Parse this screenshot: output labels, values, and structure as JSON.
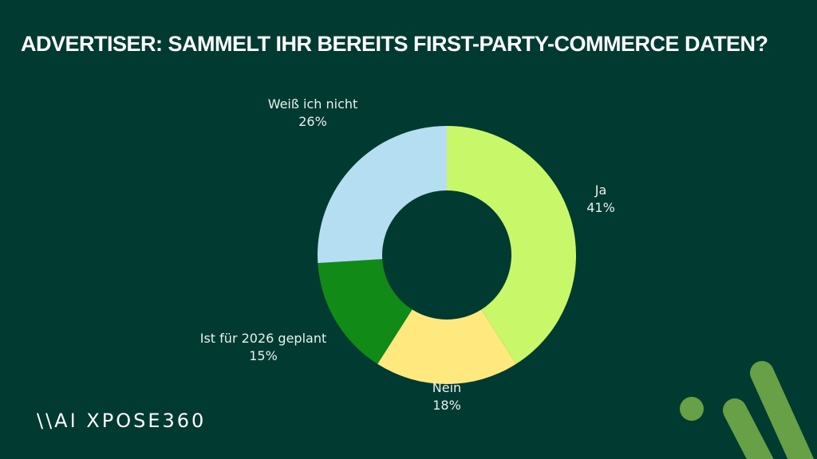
{
  "chart_data": {
    "type": "pie",
    "donut": true,
    "title": "ADVERTISER: SAMMELT IHR BEREITS FIRST-PARTY-COMMERCE DATEN?",
    "slices": [
      {
        "label": "Ja",
        "value": 41,
        "value_label": "41%",
        "color": "#c8f76a"
      },
      {
        "label": "Nein",
        "value": 18,
        "value_label": "18%",
        "color": "#ffe97f"
      },
      {
        "label": "Ist für 2026 geplant",
        "value": 15,
        "value_label": "15%",
        "color": "#118a18"
      },
      {
        "label": "Weiß ich nicht",
        "value": 26,
        "value_label": "26%",
        "color": "#b6def2"
      }
    ],
    "start": "top",
    "direction": "clockwise"
  },
  "branding": {
    "logo_text": "\\\\AI XPOSE360",
    "accent_color": "#67a046",
    "background_color": "#003a30"
  }
}
